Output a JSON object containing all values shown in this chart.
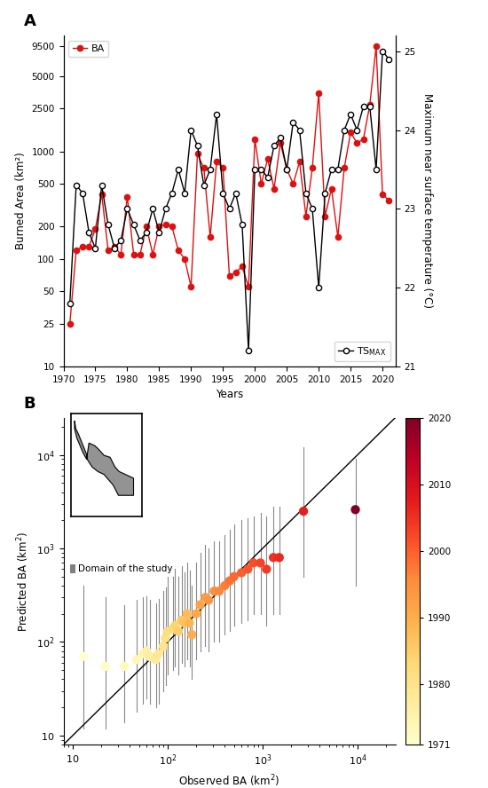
{
  "years": [
    1971,
    1972,
    1973,
    1974,
    1975,
    1976,
    1977,
    1978,
    1979,
    1980,
    1981,
    1982,
    1983,
    1984,
    1985,
    1986,
    1987,
    1988,
    1989,
    1990,
    1991,
    1992,
    1993,
    1994,
    1995,
    1996,
    1997,
    1998,
    1999,
    2000,
    2001,
    2002,
    2003,
    2004,
    2005,
    2006,
    2007,
    2008,
    2009,
    2010,
    2011,
    2012,
    2013,
    2014,
    2015,
    2016,
    2017,
    2018,
    2019,
    2020,
    2021
  ],
  "BA": [
    25,
    120,
    130,
    130,
    190,
    400,
    120,
    130,
    110,
    380,
    110,
    110,
    200,
    110,
    200,
    210,
    200,
    120,
    100,
    55,
    950,
    700,
    160,
    800,
    700,
    70,
    75,
    85,
    55,
    1300,
    500,
    850,
    450,
    1200,
    680,
    500,
    800,
    250,
    700,
    3500,
    250,
    450,
    160,
    700,
    1500,
    1200,
    1300,
    2700,
    9500,
    400,
    350
  ],
  "TSMAX": [
    21.8,
    23.3,
    23.2,
    22.7,
    22.5,
    23.3,
    22.8,
    22.5,
    22.6,
    23.0,
    22.8,
    22.6,
    22.7,
    23.0,
    22.7,
    23.0,
    23.2,
    23.5,
    23.2,
    24.0,
    23.8,
    23.3,
    23.5,
    24.2,
    23.2,
    23.0,
    23.2,
    22.8,
    21.2,
    23.5,
    23.5,
    23.4,
    23.8,
    23.9,
    23.5,
    24.1,
    24.0,
    23.2,
    23.0,
    22.0,
    23.2,
    23.5,
    23.5,
    24.0,
    24.2,
    24.0,
    24.3,
    24.3,
    23.5,
    25.0,
    24.9
  ],
  "BA_ylabel": "Burned Area (km²)",
  "TSMAX_ylabel": "Maximum near surface temperature (°C)",
  "xlabel": "Years",
  "ylim_BA": [
    10,
    12000
  ],
  "ylim_TSMAX": [
    21.0,
    25.2
  ],
  "ba_yticks": [
    10,
    25,
    50,
    100,
    200,
    500,
    1000,
    2500,
    5000,
    9500
  ],
  "ts_yticks": [
    21,
    22,
    23,
    24,
    25
  ],
  "xticks": [
    1970,
    1975,
    1980,
    1985,
    1990,
    1995,
    2000,
    2005,
    2010,
    2015,
    2020
  ],
  "obs_BA": [
    13,
    22,
    35,
    47,
    55,
    60,
    65,
    75,
    80,
    90,
    95,
    100,
    115,
    120,
    130,
    140,
    150,
    160,
    170,
    180,
    200,
    220,
    250,
    270,
    310,
    350,
    400,
    450,
    500,
    600,
    700,
    800,
    950,
    1100,
    1300,
    1500,
    2700,
    9500
  ],
  "pred_BA": [
    70,
    55,
    55,
    65,
    75,
    80,
    70,
    65,
    75,
    90,
    110,
    130,
    140,
    150,
    130,
    170,
    160,
    200,
    160,
    120,
    200,
    250,
    300,
    280,
    350,
    350,
    400,
    450,
    500,
    550,
    600,
    700,
    700,
    600,
    800,
    800,
    2500,
    2600
  ],
  "pred_low": [
    12,
    12,
    14,
    18,
    22,
    25,
    22,
    20,
    22,
    30,
    35,
    45,
    50,
    55,
    45,
    60,
    55,
    65,
    55,
    40,
    65,
    80,
    90,
    80,
    100,
    100,
    120,
    130,
    150,
    160,
    170,
    200,
    200,
    150,
    200,
    200,
    500,
    400
  ],
  "pred_high": [
    400,
    300,
    250,
    280,
    300,
    310,
    280,
    260,
    290,
    350,
    380,
    500,
    500,
    600,
    500,
    650,
    550,
    700,
    580,
    400,
    700,
    900,
    1100,
    1000,
    1200,
    1200,
    1400,
    1600,
    1800,
    2000,
    2100,
    2200,
    2400,
    2200,
    2800,
    2800,
    12000,
    9000
  ],
  "scatter_years": [
    1971,
    1972,
    1973,
    1974,
    1975,
    1976,
    1977,
    1978,
    1979,
    1980,
    1981,
    1982,
    1983,
    1984,
    1985,
    1986,
    1987,
    1988,
    1989,
    1990,
    1991,
    1992,
    1993,
    1994,
    1995,
    1996,
    1997,
    1998,
    1999,
    2000,
    2001,
    2002,
    2003,
    2004,
    2005,
    2006,
    2007,
    2020
  ],
  "cbar_ticks": [
    1971,
    1980,
    1990,
    2000,
    2010,
    2020
  ],
  "background_color": "#ffffff"
}
